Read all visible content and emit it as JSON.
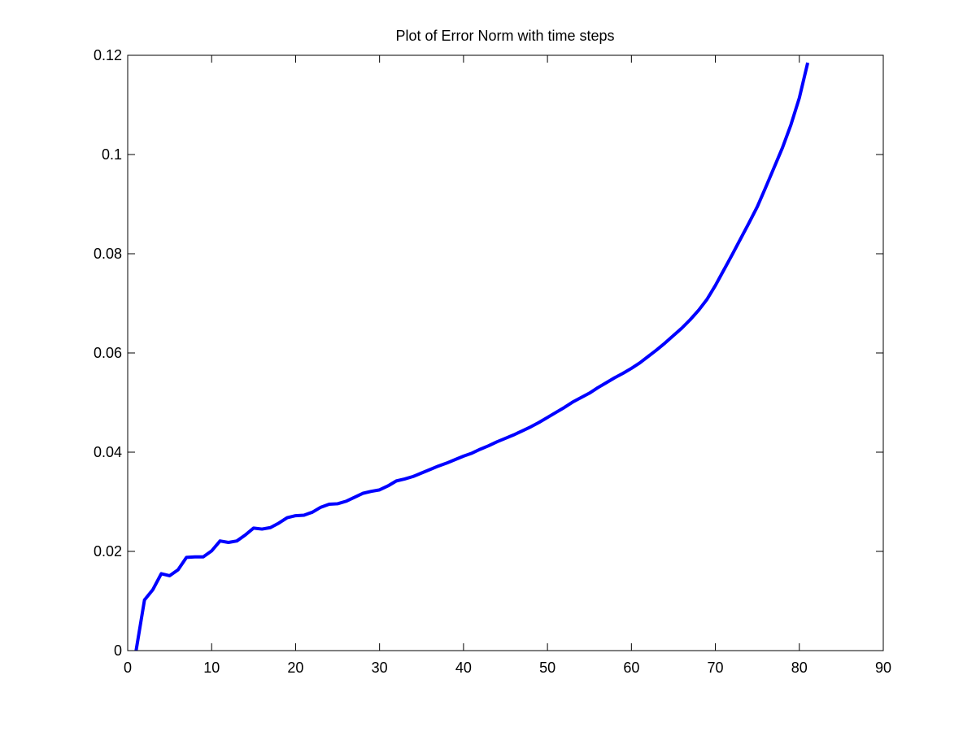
{
  "chart_data": {
    "type": "line",
    "title": "Plot of Error Norm with time steps",
    "xlabel": "",
    "ylabel": "",
    "xlim": [
      0,
      90
    ],
    "ylim": [
      0,
      0.12
    ],
    "xticks": [
      0,
      10,
      20,
      30,
      40,
      50,
      60,
      70,
      80,
      90
    ],
    "yticks": [
      0,
      0.02,
      0.04,
      0.06,
      0.08,
      0.1,
      0.12
    ],
    "xtick_labels": [
      "0",
      "10",
      "20",
      "30",
      "40",
      "50",
      "60",
      "70",
      "80",
      "90"
    ],
    "ytick_labels": [
      "0",
      "0.02",
      "0.04",
      "0.06",
      "0.08",
      "0.1",
      "0.12"
    ],
    "grid": false,
    "legend": "none",
    "series": [
      {
        "color": "#0000ff",
        "x": [
          1,
          2,
          3,
          4,
          5,
          6,
          7,
          8,
          9,
          10,
          11,
          12,
          13,
          14,
          15,
          16,
          17,
          18,
          19,
          20,
          21,
          22,
          23,
          24,
          25,
          26,
          27,
          28,
          29,
          30,
          31,
          32,
          33,
          34,
          35,
          36,
          37,
          38,
          39,
          40,
          41,
          42,
          43,
          44,
          45,
          46,
          47,
          48,
          49,
          50,
          51,
          52,
          53,
          54,
          55,
          56,
          57,
          58,
          59,
          60,
          61,
          62,
          63,
          64,
          65,
          66,
          67,
          68,
          69,
          70,
          71,
          72,
          73,
          74,
          75,
          76,
          77,
          78,
          79,
          80,
          81
        ],
        "y": [
          0,
          0.0102,
          0.0123,
          0.0155,
          0.0151,
          0.0163,
          0.0188,
          0.0189,
          0.0189,
          0.0201,
          0.0221,
          0.0218,
          0.0221,
          0.0233,
          0.0247,
          0.0245,
          0.0248,
          0.0257,
          0.0268,
          0.0272,
          0.0273,
          0.0279,
          0.0289,
          0.0295,
          0.0296,
          0.0301,
          0.0309,
          0.0317,
          0.0321,
          0.0324,
          0.0332,
          0.0342,
          0.0346,
          0.0351,
          0.0358,
          0.0365,
          0.0372,
          0.0378,
          0.0385,
          0.0392,
          0.0398,
          0.0406,
          0.0413,
          0.0421,
          0.0428,
          0.0435,
          0.0443,
          0.0451,
          0.046,
          0.047,
          0.048,
          0.049,
          0.0501,
          0.051,
          0.0519,
          0.053,
          0.054,
          0.055,
          0.0559,
          0.0569,
          0.058,
          0.0593,
          0.0606,
          0.062,
          0.0635,
          0.065,
          0.0667,
          0.0686,
          0.0708,
          0.0736,
          0.0767,
          0.0798,
          0.083,
          0.0862,
          0.0895,
          0.0934,
          0.0974,
          0.1014,
          0.106,
          0.1114,
          0.1185
        ]
      }
    ]
  }
}
